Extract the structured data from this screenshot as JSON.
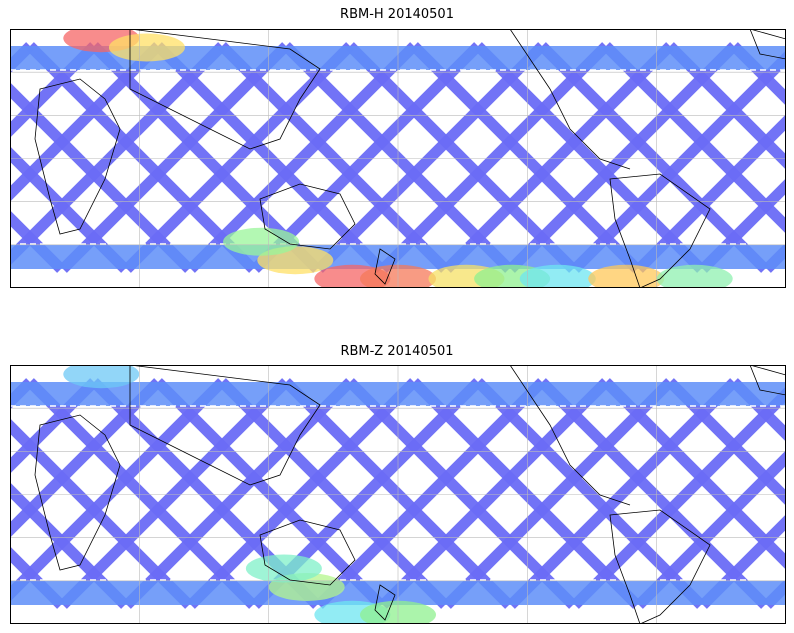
{
  "panels": [
    {
      "title": "RBM-H 20140501",
      "swath_color": "#6a6cf6",
      "band_color": "#5e8ef8",
      "hotspots": [
        {
          "lon": 60,
          "lat": 75,
          "value": "high",
          "color": "#f56565"
        },
        {
          "lon": 80,
          "lat": 70,
          "value": "mid",
          "color": "#ffe066"
        },
        {
          "lon": 170,
          "lat": -55,
          "value": "high",
          "color": "#f56565"
        },
        {
          "lon": 145,
          "lat": -45,
          "value": "mid",
          "color": "#ffe066"
        },
        {
          "lon": 130,
          "lat": -35,
          "value": "low",
          "color": "#9af59a"
        },
        {
          "lon": -170,
          "lat": -55,
          "value": "high",
          "color": "#f57a5a"
        },
        {
          "lon": -140,
          "lat": -55,
          "value": "mid",
          "color": "#f5e066"
        },
        {
          "lon": -120,
          "lat": -55,
          "value": "low",
          "color": "#8ff08f"
        },
        {
          "lon": -100,
          "lat": -55,
          "value": "low",
          "color": "#6ee6f0"
        },
        {
          "lon": -70,
          "lat": -55,
          "value": "mid",
          "color": "#ffc85a"
        },
        {
          "lon": -40,
          "lat": -55,
          "value": "low",
          "color": "#8ff0b0"
        },
        {
          "lon": 0,
          "lat": -55,
          "value": "low",
          "color": "#6ee6f0"
        }
      ]
    },
    {
      "title": "RBM-Z 20140501",
      "swath_color": "#6a6cf6",
      "band_color": "#5e8ef8",
      "hotspots": [
        {
          "lon": 150,
          "lat": -40,
          "value": "low",
          "color": "#b4f58c"
        },
        {
          "lon": 140,
          "lat": -30,
          "value": "low",
          "color": "#7ff0c8"
        },
        {
          "lon": 170,
          "lat": -55,
          "value": "low",
          "color": "#6ee6f0"
        },
        {
          "lon": -170,
          "lat": -55,
          "value": "low",
          "color": "#8ff08f"
        },
        {
          "lon": 60,
          "lat": 75,
          "value": "low",
          "color": "#6ec8f5"
        }
      ]
    }
  ],
  "legend_levels": {
    "low": "#6a6cf6",
    "mid": "#ffe066",
    "high": "#f56565"
  }
}
